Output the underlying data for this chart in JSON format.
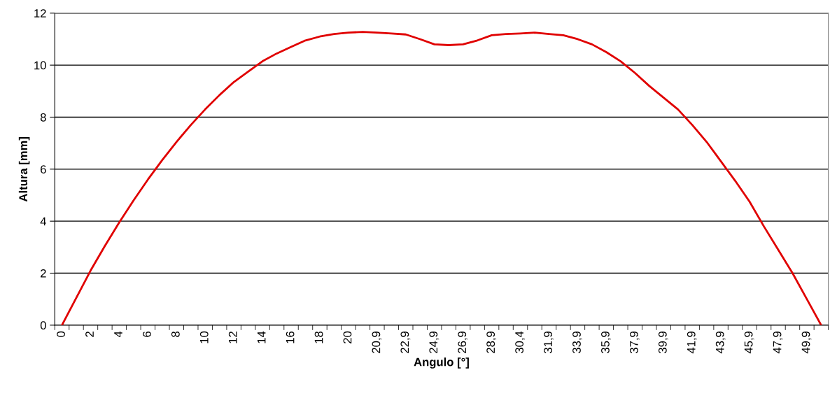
{
  "chart_data": {
    "type": "line",
    "xlabel": "Angulo [°]",
    "ylabel": "Altura [mm]",
    "categories": [
      "0",
      null,
      "2",
      null,
      "4",
      null,
      "6",
      null,
      "8",
      null,
      "10",
      null,
      "12",
      null,
      "14",
      null,
      "16",
      null,
      "18",
      null,
      "20",
      null,
      "20,9",
      null,
      "22,9",
      null,
      "24,9",
      null,
      "26,9",
      null,
      "28,9",
      null,
      "30,4",
      null,
      "31,9",
      null,
      "33,9",
      null,
      "35,9",
      null,
      "37,9",
      null,
      "39,9",
      null,
      "41,9",
      null,
      "43,9",
      null,
      "45,9",
      null,
      "47,9",
      null,
      "49,9",
      null
    ],
    "series": [
      {
        "color": "#e00000",
        "values": [
          0,
          1.05,
          2.1,
          3.05,
          3.95,
          4.8,
          5.6,
          6.35,
          7.05,
          7.7,
          8.3,
          8.85,
          9.35,
          9.75,
          10.15,
          10.45,
          10.7,
          10.95,
          11.1,
          11.2,
          11.25,
          11.28,
          11.25,
          11.22,
          11.18,
          11.0,
          10.8,
          10.77,
          10.8,
          10.95,
          11.15,
          11.2,
          11.22,
          11.25,
          11.2,
          11.15,
          11.0,
          10.8,
          10.5,
          10.15,
          9.7,
          9.2,
          8.75,
          8.3,
          7.7,
          7.05,
          6.3,
          5.55,
          4.75,
          3.8,
          2.9,
          2.0,
          1.0,
          0
        ]
      }
    ],
    "ylim": [
      0,
      12
    ],
    "yticks": [
      0,
      2,
      4,
      6,
      8,
      10,
      12
    ],
    "grid": "y",
    "marker": "none",
    "line_style": "solid",
    "legend": false
  }
}
